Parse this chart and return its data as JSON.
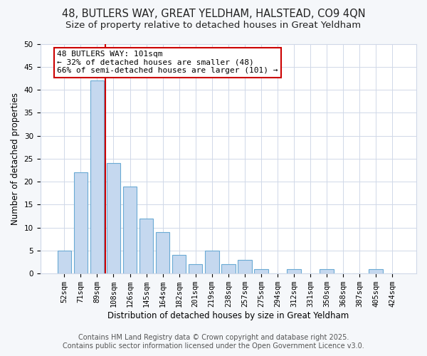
{
  "title_line1": "48, BUTLERS WAY, GREAT YELDHAM, HALSTEAD, CO9 4QN",
  "title_line2": "Size of property relative to detached houses in Great Yeldham",
  "xlabel": "Distribution of detached houses by size in Great Yeldham",
  "ylabel": "Number of detached properties",
  "categories": [
    "52sqm",
    "71sqm",
    "89sqm",
    "108sqm",
    "126sqm",
    "145sqm",
    "164sqm",
    "182sqm",
    "201sqm",
    "219sqm",
    "238sqm",
    "257sqm",
    "275sqm",
    "294sqm",
    "312sqm",
    "331sqm",
    "350sqm",
    "368sqm",
    "387sqm",
    "405sqm",
    "424sqm"
  ],
  "values": [
    5,
    22,
    42,
    24,
    19,
    12,
    9,
    4,
    2,
    5,
    2,
    3,
    1,
    0,
    1,
    0,
    1,
    0,
    0,
    1,
    0
  ],
  "bar_color": "#c5d8ef",
  "bar_edge_color": "#6aaad4",
  "vline_x": 2.5,
  "vline_color": "#cc0000",
  "ylim": [
    0,
    50
  ],
  "yticks": [
    0,
    5,
    10,
    15,
    20,
    25,
    30,
    35,
    40,
    45,
    50
  ],
  "annotation_text": "48 BUTLERS WAY: 101sqm\n← 32% of detached houses are smaller (48)\n66% of semi-detached houses are larger (101) →",
  "annotation_box_color": "#ffffff",
  "annotation_box_edge": "#cc0000",
  "footer_line1": "Contains HM Land Registry data © Crown copyright and database right 2025.",
  "footer_line2": "Contains public sector information licensed under the Open Government Licence v3.0.",
  "bg_color": "#f5f7fa",
  "plot_bg_color": "#ffffff",
  "grid_color": "#d0d8e8",
  "title_fontsize": 10.5,
  "subtitle_fontsize": 9.5,
  "label_fontsize": 8.5,
  "tick_fontsize": 7.5,
  "annotation_fontsize": 8,
  "footer_fontsize": 7
}
